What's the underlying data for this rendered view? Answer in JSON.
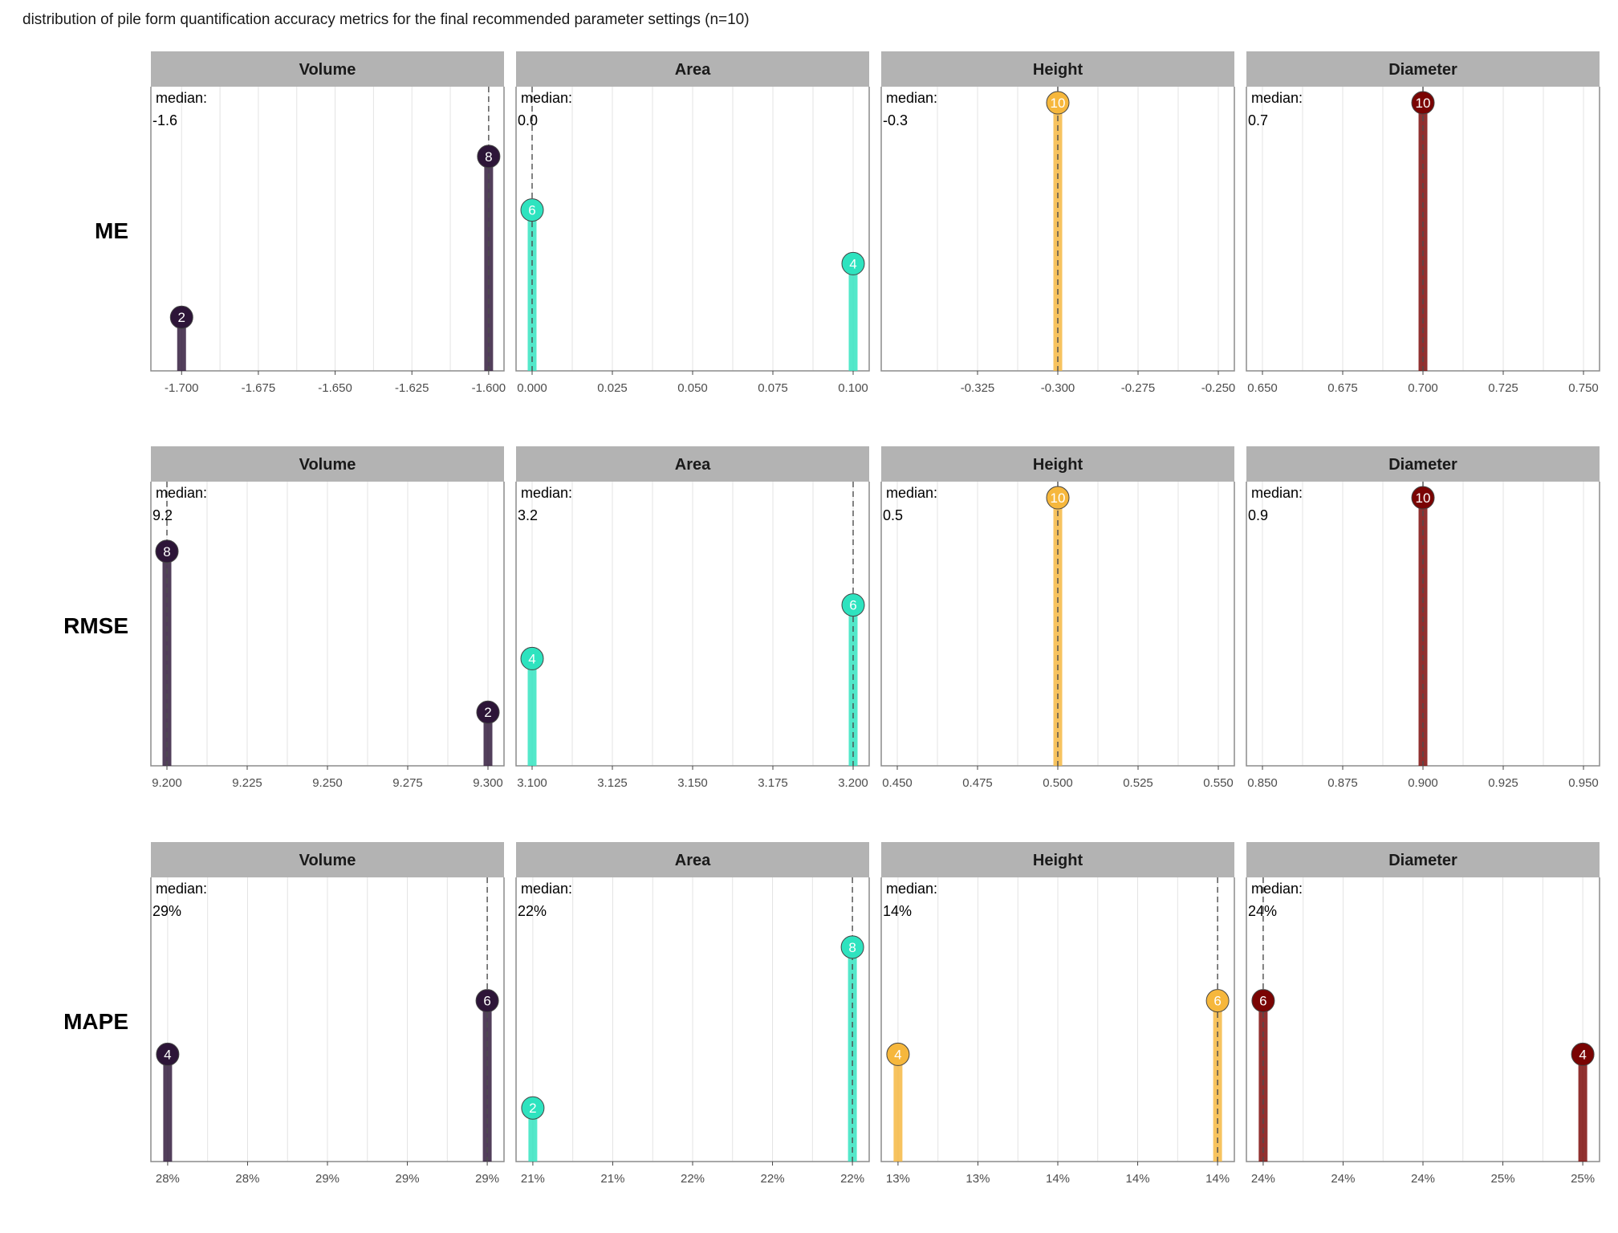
{
  "title": "distribution of pile form quantification accuracy metrics for the final recommended parameter settings (n=10)",
  "median_label": "median:",
  "colors": {
    "Volume": "#2d1538",
    "Area": "#2ee3bf",
    "Height": "#f6b73c",
    "Diameter": "#7a0403",
    "strip_bg": "#b3b3b3",
    "grid": "#e3e3e3",
    "panel_border": "#8c8c8c",
    "median_line": "#4d4d4d"
  },
  "chart_data": {
    "type": "lollipop",
    "facets": [
      "Volume",
      "Area",
      "Height",
      "Diameter"
    ],
    "rows": [
      "ME",
      "RMSE",
      "MAPE"
    ],
    "ylim": [
      0,
      10.6
    ],
    "grid": true,
    "panels": [
      {
        "row": "ME",
        "facet": "Volume",
        "xlim": [
          -1.71,
          -1.595
        ],
        "ticks": [
          -1.7,
          -1.675,
          -1.65,
          -1.625,
          -1.6
        ],
        "tick_labels": [
          "-1.700",
          "-1.675",
          "-1.650",
          "-1.625",
          "-1.600"
        ],
        "median": -1.6,
        "median_text": "-1.6",
        "points": [
          {
            "x": -1.7,
            "count": 2
          },
          {
            "x": -1.6,
            "count": 8
          }
        ]
      },
      {
        "row": "ME",
        "facet": "Area",
        "xlim": [
          -0.005,
          0.105
        ],
        "ticks": [
          0,
          0.025,
          0.05,
          0.075,
          0.1
        ],
        "tick_labels": [
          "0.000",
          "0.025",
          "0.050",
          "0.075",
          "0.100"
        ],
        "median": 0.0,
        "median_text": "0.0",
        "points": [
          {
            "x": 0.0,
            "count": 6
          },
          {
            "x": 0.1,
            "count": 4
          }
        ]
      },
      {
        "row": "ME",
        "facet": "Height",
        "xlim": [
          -0.355,
          -0.245
        ],
        "ticks": [
          -0.325,
          -0.3,
          -0.275,
          -0.25
        ],
        "tick_labels": [
          "-0.325",
          "-0.300",
          "-0.275",
          "-0.250"
        ],
        "median": -0.3,
        "median_text": "-0.3",
        "points": [
          {
            "x": -0.3,
            "count": 10
          }
        ]
      },
      {
        "row": "ME",
        "facet": "Diameter",
        "xlim": [
          0.645,
          0.755
        ],
        "ticks": [
          0.65,
          0.675,
          0.7,
          0.725,
          0.75
        ],
        "tick_labels": [
          "0.650",
          "0.675",
          "0.700",
          "0.725",
          "0.750"
        ],
        "median": 0.7,
        "median_text": "0.7",
        "points": [
          {
            "x": 0.7,
            "count": 10
          }
        ]
      },
      {
        "row": "RMSE",
        "facet": "Volume",
        "xlim": [
          9.195,
          9.305
        ],
        "ticks": [
          9.2,
          9.225,
          9.25,
          9.275,
          9.3
        ],
        "tick_labels": [
          "9.200",
          "9.225",
          "9.250",
          "9.275",
          "9.300"
        ],
        "median": 9.2,
        "median_text": "9.2",
        "points": [
          {
            "x": 9.2,
            "count": 8
          },
          {
            "x": 9.3,
            "count": 2
          }
        ]
      },
      {
        "row": "RMSE",
        "facet": "Area",
        "xlim": [
          3.095,
          3.205
        ],
        "ticks": [
          3.1,
          3.125,
          3.15,
          3.175,
          3.2
        ],
        "tick_labels": [
          "3.100",
          "3.125",
          "3.150",
          "3.175",
          "3.200"
        ],
        "median": 3.2,
        "median_text": "3.2",
        "points": [
          {
            "x": 3.1,
            "count": 4
          },
          {
            "x": 3.2,
            "count": 6
          }
        ]
      },
      {
        "row": "RMSE",
        "facet": "Height",
        "xlim": [
          0.445,
          0.555
        ],
        "ticks": [
          0.45,
          0.475,
          0.5,
          0.525,
          0.55
        ],
        "tick_labels": [
          "0.450",
          "0.475",
          "0.500",
          "0.525",
          "0.550"
        ],
        "median": 0.5,
        "median_text": "0.5",
        "points": [
          {
            "x": 0.5,
            "count": 10
          }
        ]
      },
      {
        "row": "RMSE",
        "facet": "Diameter",
        "xlim": [
          0.845,
          0.955
        ],
        "ticks": [
          0.85,
          0.875,
          0.9,
          0.925,
          0.95
        ],
        "tick_labels": [
          "0.850",
          "0.875",
          "0.900",
          "0.925",
          "0.950"
        ],
        "median": 0.9,
        "median_text": "0.9",
        "points": [
          {
            "x": 0.9,
            "count": 10
          }
        ]
      },
      {
        "row": "MAPE",
        "facet": "Volume",
        "xlim": [
          -0.0525,
          1.0525
        ],
        "ticks": [
          0,
          0.25,
          0.5,
          0.75,
          1
        ],
        "tick_labels": [
          "28%",
          "28%",
          "29%",
          "29%",
          "29%"
        ],
        "median": 1,
        "median_text": "29%",
        "points": [
          {
            "x": 0,
            "count": 4
          },
          {
            "x": 1,
            "count": 6
          }
        ]
      },
      {
        "row": "MAPE",
        "facet": "Area",
        "xlim": [
          -0.0525,
          1.0525
        ],
        "ticks": [
          0,
          0.25,
          0.5,
          0.75,
          1
        ],
        "tick_labels": [
          "21%",
          "21%",
          "22%",
          "22%",
          "22%"
        ],
        "median": 1,
        "median_text": "22%",
        "points": [
          {
            "x": 0,
            "count": 2
          },
          {
            "x": 1,
            "count": 8
          }
        ]
      },
      {
        "row": "MAPE",
        "facet": "Height",
        "xlim": [
          -0.0525,
          1.0525
        ],
        "ticks": [
          0,
          0.25,
          0.5,
          0.75,
          1
        ],
        "tick_labels": [
          "13%",
          "13%",
          "14%",
          "14%",
          "14%"
        ],
        "median": 1,
        "median_text": "14%",
        "points": [
          {
            "x": 0,
            "count": 4
          },
          {
            "x": 1,
            "count": 6
          }
        ]
      },
      {
        "row": "MAPE",
        "facet": "Diameter",
        "xlim": [
          -0.0525,
          1.0525
        ],
        "ticks": [
          0,
          0.25,
          0.5,
          0.75,
          1
        ],
        "tick_labels": [
          "24%",
          "24%",
          "24%",
          "25%",
          "25%"
        ],
        "median": 0,
        "median_text": "24%",
        "points": [
          {
            "x": 0,
            "count": 6
          },
          {
            "x": 1,
            "count": 4
          }
        ]
      }
    ]
  }
}
